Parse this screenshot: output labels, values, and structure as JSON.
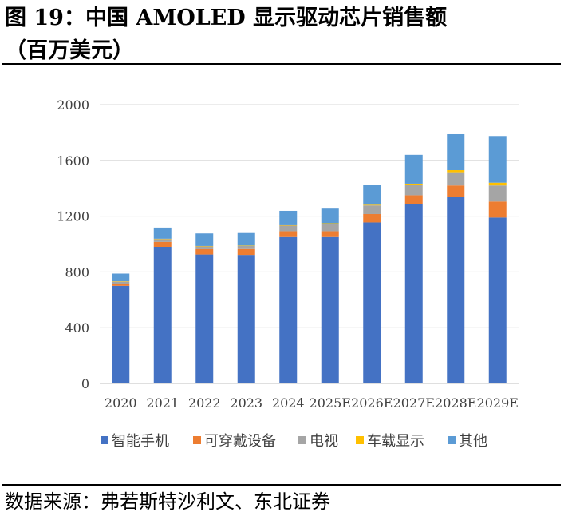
{
  "title": {
    "line1": "图 19：中国 AMOLED 显示驱动芯片销售额",
    "line2": "（百万美元）"
  },
  "source": "数据来源：弗若斯特沙利文、东北证券",
  "chart_data": {
    "type": "bar",
    "stacked": true,
    "categories": [
      "2020",
      "2021",
      "2022",
      "2023",
      "2024",
      "2025E",
      "2026E",
      "2027E",
      "2028E",
      "2029E"
    ],
    "ylim": [
      0,
      2000
    ],
    "yticks": [
      0,
      400,
      800,
      1200,
      1600,
      2000
    ],
    "grid": true,
    "legend_position": "bottom",
    "series": [
      {
        "name": "智能手机",
        "color": "#4472C4",
        "values": [
          700,
          980,
          925,
          922,
          1050,
          1050,
          1155,
          1285,
          1340,
          1190
        ]
      },
      {
        "name": "可穿戴设备",
        "color": "#ED7D31",
        "values": [
          15,
          35,
          38,
          42,
          42,
          42,
          60,
          65,
          80,
          115
        ]
      },
      {
        "name": "电视",
        "color": "#A5A5A5",
        "values": [
          15,
          20,
          20,
          22,
          40,
          52,
          62,
          75,
          95,
          115
        ]
      },
      {
        "name": "车载显示",
        "color": "#FFC000",
        "values": [
          3,
          3,
          3,
          3,
          3,
          5,
          5,
          8,
          15,
          20
        ]
      },
      {
        "name": "其他",
        "color": "#5B9BD5",
        "values": [
          55,
          80,
          90,
          90,
          103,
          105,
          143,
          207,
          258,
          335
        ]
      }
    ]
  }
}
